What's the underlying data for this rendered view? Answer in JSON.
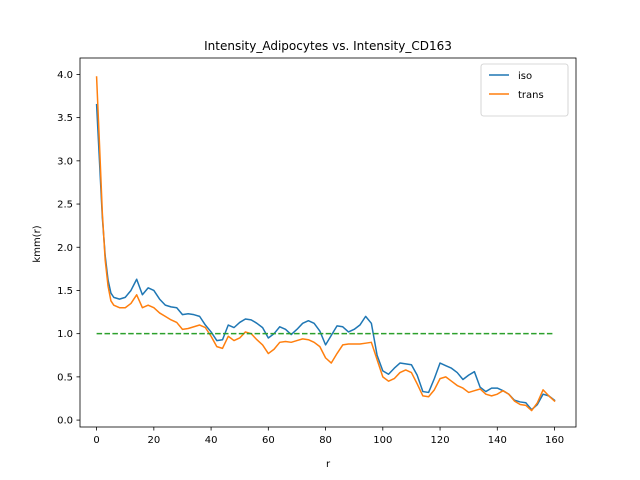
{
  "chart_data": {
    "type": "line",
    "title": "Intensity_Adipocytes vs. Intensity_CD163",
    "xlabel": "r",
    "ylabel": "kmm(r)",
    "xlim": [
      -5.8,
      167.5
    ],
    "ylim": [
      -0.08,
      4.19
    ],
    "xticks": [
      0,
      20,
      40,
      60,
      80,
      100,
      120,
      140,
      160
    ],
    "yticks": [
      0.0,
      0.5,
      1.0,
      1.5,
      2.0,
      2.5,
      3.0,
      3.5,
      4.0
    ],
    "xtick_labels": [
      "0",
      "20",
      "40",
      "60",
      "80",
      "100",
      "120",
      "140",
      "160"
    ],
    "ytick_labels": [
      "0.0",
      "0.5",
      "1.0",
      "1.5",
      "2.0",
      "2.5",
      "3.0",
      "3.5",
      "4.0"
    ],
    "grid": false,
    "legend_position": "top-right",
    "series": [
      {
        "name": "iso",
        "color": "#1f77b4",
        "x": [
          0,
          1,
          2,
          3,
          4,
          5,
          6,
          8,
          10,
          12,
          14,
          16,
          18,
          20,
          22,
          24,
          26,
          28,
          30,
          32,
          34,
          36,
          38,
          40,
          42,
          44,
          46,
          48,
          50,
          52,
          54,
          56,
          58,
          60,
          62,
          64,
          66,
          68,
          70,
          72,
          74,
          76,
          78,
          80,
          82,
          84,
          86,
          88,
          90,
          92,
          94,
          96,
          98,
          100,
          102,
          104,
          106,
          108,
          110,
          112,
          114,
          116,
          118,
          120,
          122,
          124,
          126,
          128,
          130,
          132,
          134,
          136,
          138,
          140,
          142,
          144,
          146,
          148,
          150,
          152,
          154,
          156,
          158,
          160
        ],
        "y": [
          3.65,
          3.0,
          2.35,
          1.9,
          1.62,
          1.47,
          1.42,
          1.4,
          1.42,
          1.5,
          1.63,
          1.45,
          1.53,
          1.5,
          1.4,
          1.33,
          1.31,
          1.3,
          1.22,
          1.23,
          1.22,
          1.2,
          1.1,
          1.02,
          0.92,
          0.93,
          1.1,
          1.07,
          1.13,
          1.17,
          1.16,
          1.12,
          1.07,
          0.95,
          1.0,
          1.08,
          1.05,
          0.99,
          1.05,
          1.12,
          1.15,
          1.12,
          1.03,
          0.87,
          0.98,
          1.09,
          1.08,
          1.02,
          1.05,
          1.1,
          1.2,
          1.12,
          0.75,
          0.57,
          0.53,
          0.6,
          0.66,
          0.65,
          0.64,
          0.52,
          0.33,
          0.32,
          0.48,
          0.66,
          0.63,
          0.6,
          0.55,
          0.47,
          0.52,
          0.56,
          0.38,
          0.33,
          0.37,
          0.37,
          0.34,
          0.3,
          0.23,
          0.21,
          0.2,
          0.12,
          0.18,
          0.3,
          0.28,
          0.23
        ]
      },
      {
        "name": "trans",
        "color": "#ff7f0e",
        "x": [
          0,
          1,
          2,
          3,
          4,
          5,
          6,
          8,
          10,
          12,
          14,
          16,
          18,
          20,
          22,
          24,
          26,
          28,
          30,
          32,
          34,
          36,
          38,
          40,
          42,
          44,
          46,
          48,
          50,
          52,
          54,
          56,
          58,
          60,
          62,
          64,
          66,
          68,
          70,
          72,
          74,
          76,
          78,
          80,
          82,
          84,
          86,
          88,
          90,
          92,
          94,
          96,
          98,
          100,
          102,
          104,
          106,
          108,
          110,
          112,
          114,
          116,
          118,
          120,
          122,
          124,
          126,
          128,
          130,
          132,
          134,
          136,
          138,
          140,
          142,
          144,
          146,
          148,
          150,
          152,
          154,
          156,
          158,
          160
        ],
        "y": [
          3.97,
          3.2,
          2.4,
          1.85,
          1.55,
          1.38,
          1.33,
          1.3,
          1.3,
          1.35,
          1.45,
          1.3,
          1.33,
          1.3,
          1.24,
          1.2,
          1.16,
          1.13,
          1.05,
          1.06,
          1.08,
          1.1,
          1.07,
          0.97,
          0.85,
          0.83,
          0.97,
          0.92,
          0.95,
          1.02,
          1.0,
          0.93,
          0.87,
          0.77,
          0.82,
          0.9,
          0.91,
          0.9,
          0.92,
          0.94,
          0.93,
          0.9,
          0.85,
          0.72,
          0.66,
          0.77,
          0.87,
          0.88,
          0.88,
          0.88,
          0.89,
          0.9,
          0.7,
          0.5,
          0.45,
          0.48,
          0.55,
          0.58,
          0.55,
          0.42,
          0.28,
          0.27,
          0.35,
          0.48,
          0.5,
          0.45,
          0.4,
          0.37,
          0.32,
          0.34,
          0.36,
          0.3,
          0.28,
          0.3,
          0.34,
          0.3,
          0.22,
          0.18,
          0.17,
          0.11,
          0.2,
          0.35,
          0.28,
          0.22
        ]
      },
      {
        "name": "",
        "color": "#2ca02c",
        "dashed": true,
        "x": [
          0,
          160
        ],
        "y": [
          1.0,
          1.0
        ]
      }
    ]
  }
}
